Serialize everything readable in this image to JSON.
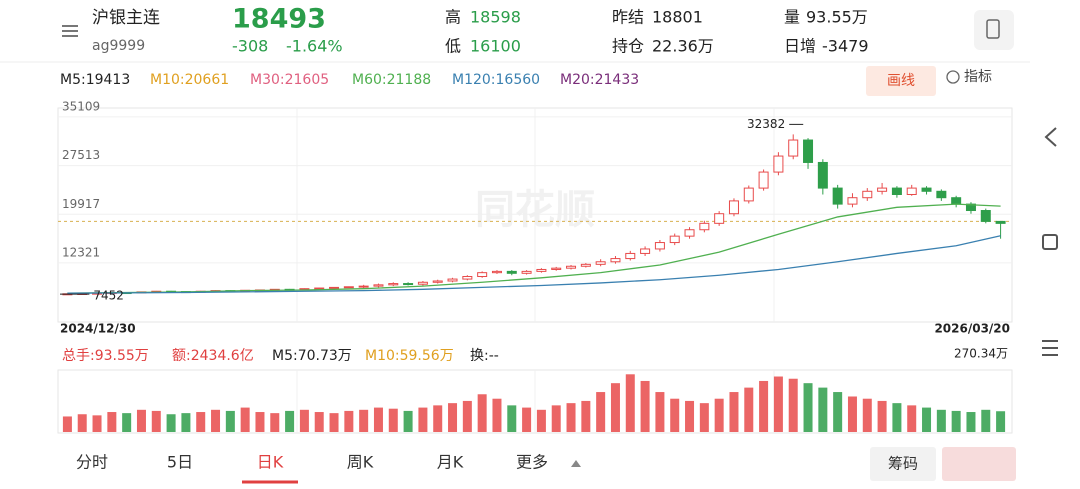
{
  "header": {
    "name": "沪银主连",
    "code": "ag9999",
    "price": "18493",
    "change": "-308",
    "change_pct": "-1.64%",
    "high_label": "高",
    "high": "18598",
    "low_label": "低",
    "low": "16100",
    "prev_close_label": "昨结",
    "prev_close": 18801,
    "open_interest_label": "持仓",
    "open_interest": "22.36万",
    "volume_label": "量",
    "volume": "93.55万",
    "daily_change_label": "日增",
    "daily_change": "-3479"
  },
  "ma_legend": [
    {
      "text": "M5:19413",
      "color": "#222222"
    },
    {
      "text": "M10:20661",
      "color": "#e0a020"
    },
    {
      "text": "M30:21605",
      "color": "#e06080"
    },
    {
      "text": "M60:21188",
      "color": "#50b050"
    },
    {
      "text": "M120:16560",
      "color": "#3a80b0"
    },
    {
      "text": "M20:21433",
      "color": "#7a2e7a"
    }
  ],
  "tools": {
    "draw": "画线",
    "indicator": "指标"
  },
  "price_chart": {
    "watermark": "同花顺",
    "ylim": [
      3100,
      36500
    ],
    "yticks": [
      35109,
      27513,
      19917,
      12321
    ],
    "up_color": "#e84a4a",
    "down_color": "#2e9e4a",
    "candles": {
      "open": [
        7480,
        7500,
        7550,
        7600,
        7700,
        7650,
        7800,
        7900,
        7850,
        7800,
        7900,
        8000,
        7950,
        8050,
        8100,
        8200,
        8150,
        8300,
        8400,
        8500,
        8600,
        8700,
        8900,
        9100,
        9000,
        9300,
        9500,
        9800,
        10200,
        10800,
        11000,
        10700,
        11000,
        11300,
        11500,
        11800,
        12100,
        12500,
        13000,
        13800,
        14500,
        15500,
        16500,
        17500,
        18500,
        20000,
        22000,
        24000,
        26500,
        29000,
        31500,
        28000,
        24000,
        21500,
        22500,
        23500,
        24000,
        23000,
        24000,
        23500,
        22500,
        21500,
        20500,
        18801
      ],
      "high": [
        7560,
        7600,
        7650,
        7750,
        7760,
        7850,
        7950,
        7960,
        7900,
        7960,
        8050,
        8060,
        8100,
        8150,
        8250,
        8260,
        8350,
        8450,
        8550,
        8650,
        8900,
        9100,
        9300,
        9300,
        9500,
        9700,
        10000,
        10400,
        11000,
        11200,
        11200,
        11200,
        11500,
        11700,
        12000,
        12300,
        12900,
        13400,
        14200,
        14900,
        15900,
        16900,
        17900,
        18900,
        20400,
        22400,
        24400,
        26900,
        29600,
        32382,
        31800,
        28500,
        24500,
        23200,
        24000,
        24800,
        24300,
        24500,
        24300,
        23800,
        22800,
        21800,
        20800,
        18598
      ],
      "low": [
        7452,
        7440,
        7480,
        7550,
        7580,
        7600,
        7720,
        7780,
        7740,
        7740,
        7840,
        7880,
        7900,
        7980,
        8040,
        8080,
        8080,
        8240,
        8340,
        8440,
        8400,
        8500,
        8700,
        8800,
        8800,
        9100,
        9300,
        9600,
        10000,
        10600,
        10400,
        10500,
        10800,
        11100,
        11300,
        11600,
        11800,
        12200,
        12700,
        13400,
        14100,
        15100,
        16100,
        17100,
        18100,
        19600,
        21600,
        23600,
        26000,
        28500,
        27000,
        23000,
        20800,
        21000,
        22000,
        23000,
        22500,
        22800,
        23000,
        22000,
        21000,
        20000,
        18500,
        16100
      ],
      "close": [
        7500,
        7550,
        7600,
        7700,
        7650,
        7800,
        7900,
        7850,
        7800,
        7900,
        8000,
        7950,
        8050,
        8100,
        8200,
        8150,
        8300,
        8400,
        8500,
        8600,
        8700,
        8900,
        9100,
        9000,
        9300,
        9500,
        9800,
        10200,
        10800,
        11000,
        10700,
        11000,
        11300,
        11500,
        11800,
        12100,
        12500,
        13000,
        13800,
        14500,
        15500,
        16500,
        17500,
        18500,
        20000,
        22000,
        24000,
        26500,
        29000,
        31500,
        28000,
        24000,
        21500,
        22500,
        23500,
        24000,
        23000,
        24000,
        23500,
        22500,
        21500,
        20500,
        18801,
        18493
      ]
    },
    "ma_lines": [
      {
        "color": "#50b050",
        "x": [
          0,
          4,
          8,
          12,
          16,
          20,
          24,
          28,
          32,
          36,
          40,
          44,
          48,
          52,
          56,
          60,
          63
        ],
        "values": [
          7600,
          7700,
          7800,
          8000,
          8100,
          8300,
          8700,
          9300,
          10000,
          10800,
          12000,
          14000,
          16800,
          19500,
          21000,
          21500,
          21188
        ]
      },
      {
        "color": "#3a80b0",
        "x": [
          0,
          4,
          8,
          12,
          16,
          20,
          24,
          28,
          32,
          36,
          40,
          44,
          48,
          52,
          56,
          60,
          63
        ],
        "values": [
          7600,
          7650,
          7700,
          7800,
          7900,
          8000,
          8200,
          8500,
          8800,
          9200,
          9700,
          10400,
          11300,
          12500,
          13800,
          15000,
          16560
        ]
      }
    ],
    "high_mark": 32382,
    "low_mark": 7452,
    "start_date": "2024/12/30",
    "end_date": "2026/03/20"
  },
  "volume_legend": [
    {
      "text": "总手:93.55万",
      "color": "#e04040"
    },
    {
      "text": "额:2434.6亿",
      "color": "#e04040"
    },
    {
      "text": "M5:70.73万",
      "color": "#222222"
    },
    {
      "text": "M10:59.56万",
      "color": "#e0a020"
    },
    {
      "text": "换:--",
      "color": "#222222"
    }
  ],
  "volume_chart": {
    "ylim": [
      0,
      270.34
    ],
    "top_tick": {
      "value": 270.34,
      "label": "270.34万"
    },
    "values": [
      70,
      80,
      75,
      90,
      85,
      100,
      95,
      80,
      85,
      90,
      100,
      95,
      110,
      90,
      85,
      95,
      100,
      90,
      85,
      95,
      100,
      110,
      105,
      95,
      110,
      120,
      130,
      140,
      170,
      150,
      120,
      110,
      100,
      120,
      130,
      140,
      180,
      220,
      260,
      230,
      180,
      150,
      140,
      130,
      150,
      180,
      200,
      230,
      250,
      240,
      220,
      200,
      180,
      160,
      150,
      140,
      130,
      120,
      110,
      100,
      95,
      90,
      100,
      93.55
    ]
  },
  "tabs": [
    "分时",
    "5日",
    "日K",
    "周K",
    "月K",
    "更多"
  ],
  "buttons": {
    "chips": "筹码"
  }
}
